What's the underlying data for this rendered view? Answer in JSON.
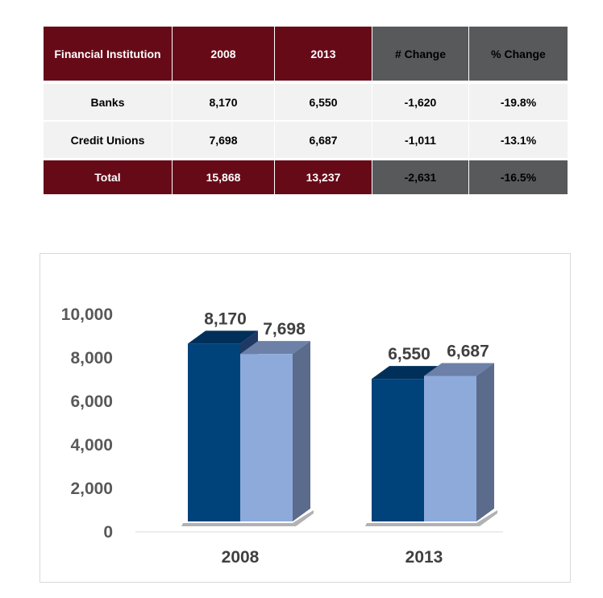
{
  "table": {
    "headers": [
      "Financial Institution",
      "2008",
      "2013",
      "# Change",
      "% Change"
    ],
    "rows": [
      [
        "Banks",
        "8,170",
        "6,550",
        "-1,620",
        "-19.8%"
      ],
      [
        "Credit Unions",
        "7,698",
        "6,687",
        "-1,011",
        "-13.1%"
      ]
    ],
    "total": [
      "Total",
      "15,868",
      "13,237",
      "-2,631",
      "-16.5%"
    ]
  },
  "colors": {
    "header_maroon": "#670A18",
    "header_gray": "#58595B",
    "row_bg": "#F2F2F2",
    "banks": "#00427A",
    "credit_unions": "#8EAADB"
  },
  "chart_data": {
    "type": "bar",
    "style": "3d-clustered",
    "categories": [
      "2008",
      "2013"
    ],
    "series": [
      {
        "values": [
          8170,
          6550
        ],
        "labels": [
          "8,170",
          "6,550"
        ],
        "color": "#00427A"
      },
      {
        "values": [
          7698,
          6687
        ],
        "labels": [
          "7,698",
          "6,687"
        ],
        "color": "#8EAADB"
      }
    ],
    "yticks": [
      "0",
      "2,000",
      "4,000",
      "6,000",
      "8,000",
      "10,000"
    ],
    "ylim": [
      0,
      10000
    ],
    "grid": false,
    "legend": "none"
  }
}
